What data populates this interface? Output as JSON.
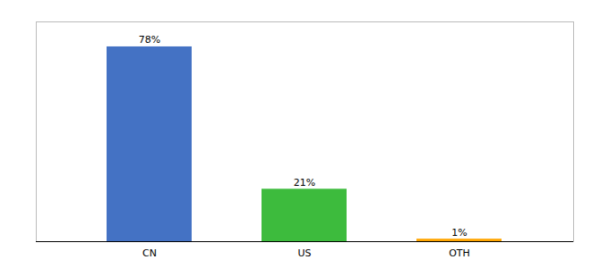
{
  "chart_data": {
    "type": "bar",
    "categories": [
      "CN",
      "US",
      "OTH"
    ],
    "values": [
      78,
      21,
      1
    ],
    "value_labels": [
      "78%",
      "21%",
      "1%"
    ],
    "colors": [
      "#4472C4",
      "#3DBB3D",
      "#FFA500"
    ],
    "ylim": [
      0,
      88
    ],
    "data_labels": true,
    "tick_labels": "x"
  }
}
